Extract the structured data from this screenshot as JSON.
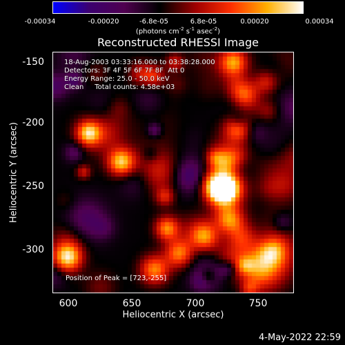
{
  "colorbar": {
    "ticks": [
      "-0.00034",
      "-0.00020",
      "-6.8e-05",
      "6.8e-05",
      "0.00020",
      "0.00034"
    ],
    "units_prefix": "(photons cm",
    "units_exp1": "-2",
    "units_mid": " s",
    "units_exp2": "-1",
    "units_mid2": " asec",
    "units_exp3": "-2",
    "units_suffix": ")"
  },
  "title": "Reconstructed RHESSI Image",
  "info": {
    "line1": "18-Aug-2003 03:33:16.000 to 03:38:28.000",
    "line2": "Detectors: 3F 4F 5F 6F 7F 8F  Att 0",
    "line3": "Energy Range: 25.0 - 50.0 keV",
    "line4": "Clean     Total counts: 4.58e+03"
  },
  "peak_text": "Position of Peak = [723,-255]",
  "axes": {
    "xlabel": "Heliocentric X (arcsec)",
    "ylabel": "Heliocentric Y (arcsec)",
    "xticks": [
      "600",
      "650",
      "700",
      "750"
    ],
    "yticks": [
      "-150",
      "-200",
      "-250",
      "-300"
    ],
    "xlim": [
      587,
      777
    ],
    "ylim": [
      -335,
      -145
    ]
  },
  "datestamp": "4-May-2022 22:59",
  "colormap_stops": [
    "#0000ff",
    "#3c0070",
    "#500050",
    "#000000",
    "#a00000",
    "#ff3000",
    "#ffb000",
    "#ffffff"
  ]
}
